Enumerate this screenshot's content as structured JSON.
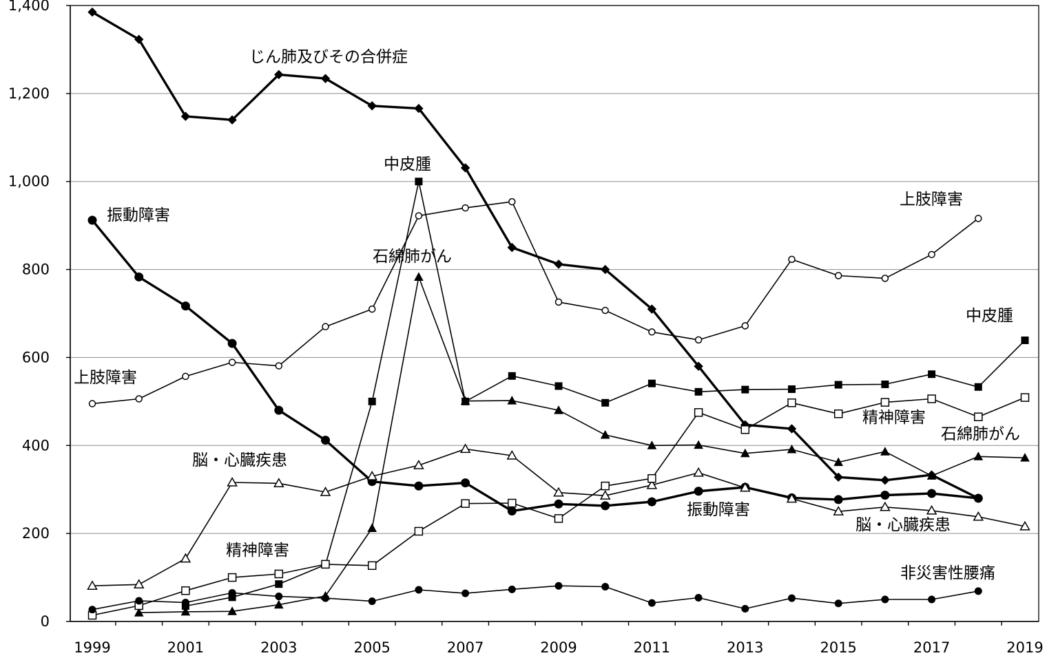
{
  "chart_data": {
    "type": "line",
    "title": "",
    "xlabel": "",
    "ylabel": "",
    "ylim": [
      0,
      1400
    ],
    "yticks": [
      0,
      200,
      400,
      600,
      800,
      1000,
      1200,
      1400
    ],
    "ytick_labels": [
      "0",
      "200",
      "400",
      "600",
      "800",
      "1,000",
      "1,200",
      "1,400"
    ],
    "xlim": [
      1999,
      2019
    ],
    "xticks": [
      1999,
      2001,
      2003,
      2005,
      2007,
      2009,
      2011,
      2013,
      2015,
      2017,
      2019
    ],
    "grid": "horizontal",
    "legend": "none (inline labels)",
    "x": [
      1999,
      2000,
      2001,
      2002,
      2003,
      2004,
      2005,
      2006,
      2007,
      2008,
      2009,
      2010,
      2011,
      2012,
      2013,
      2014,
      2015,
      2016,
      2017,
      2018,
      2019
    ],
    "series": [
      {
        "id": "pneumoconiosis",
        "marker": "diamond-filled",
        "bold": true,
        "values": [
          1385,
          1323,
          1148,
          1140,
          1243,
          1234,
          1172,
          1166,
          1031,
          850,
          812,
          800,
          710,
          580,
          447,
          438,
          328,
          321,
          333,
          280,
          null
        ]
      },
      {
        "id": "vibration",
        "marker": "circle-filled",
        "bold": true,
        "values": [
          912,
          783,
          717,
          632,
          480,
          412,
          318,
          308,
          315,
          251,
          267,
          263,
          272,
          296,
          305,
          281,
          277,
          287,
          291,
          280,
          null
        ]
      },
      {
        "id": "upper-limb",
        "marker": "circle-open",
        "bold": false,
        "values": [
          495,
          506,
          557,
          589,
          581,
          670,
          710,
          922,
          940,
          954,
          726,
          707,
          658,
          640,
          672,
          823,
          786,
          780,
          834,
          916,
          null
        ]
      },
      {
        "id": "mesothelioma",
        "marker": "square-filled",
        "bold": false,
        "values": [
          null,
          null,
          35,
          55,
          85,
          129,
          500,
          1000,
          500,
          558,
          535,
          497,
          541,
          522,
          527,
          528,
          538,
          539,
          562,
          533,
          639
        ]
      },
      {
        "id": "asbestos-lung-cancer",
        "marker": "triangle-filled",
        "bold": false,
        "values": [
          null,
          20,
          22,
          23,
          38,
          58,
          212,
          783,
          501,
          502,
          480,
          424,
          400,
          401,
          382,
          391,
          362,
          386,
          331,
          375,
          372
        ]
      },
      {
        "id": "brain-heart",
        "marker": "triangle-open",
        "bold": false,
        "values": [
          81,
          84,
          143,
          316,
          314,
          294,
          330,
          355,
          392,
          377,
          293,
          286,
          310,
          338,
          304,
          279,
          250,
          260,
          252,
          238,
          216
        ]
      },
      {
        "id": "mental",
        "marker": "square-open",
        "bold": false,
        "values": [
          14,
          36,
          70,
          100,
          108,
          130,
          127,
          205,
          268,
          269,
          234,
          308,
          325,
          475,
          436,
          497,
          472,
          498,
          506,
          465,
          509
        ]
      },
      {
        "id": "non-accidental-lumbago",
        "marker": "circle-filled-small",
        "bold": false,
        "values": [
          27,
          47,
          43,
          65,
          57,
          53,
          46,
          72,
          64,
          73,
          81,
          79,
          42,
          54,
          29,
          53,
          41,
          50,
          50,
          69,
          null
        ]
      }
    ],
    "annotations": [
      {
        "series": "pneumoconiosis",
        "text": "じん肺及びその合併症"
      },
      {
        "series": "vibration",
        "text": "振動障害"
      },
      {
        "series": "vibration",
        "text": "振動障害"
      },
      {
        "series": "upper-limb",
        "text": "上肢障害"
      },
      {
        "series": "upper-limb",
        "text": "上肢障害"
      },
      {
        "series": "mesothelioma",
        "text": "中皮腫"
      },
      {
        "series": "mesothelioma",
        "text": "中皮腫"
      },
      {
        "series": "asbestos-lung-cancer",
        "text": "石綿肺がん"
      },
      {
        "series": "asbestos-lung-cancer",
        "text": "石綿肺がん"
      },
      {
        "series": "brain-heart",
        "text": "脳・心臓疾患"
      },
      {
        "series": "brain-heart",
        "text": "脳・心臓疾患"
      },
      {
        "series": "mental",
        "text": "精神障害"
      },
      {
        "series": "mental",
        "text": "精神障害"
      },
      {
        "series": "non-accidental-lumbago",
        "text": "非災害性腰痛"
      }
    ]
  }
}
